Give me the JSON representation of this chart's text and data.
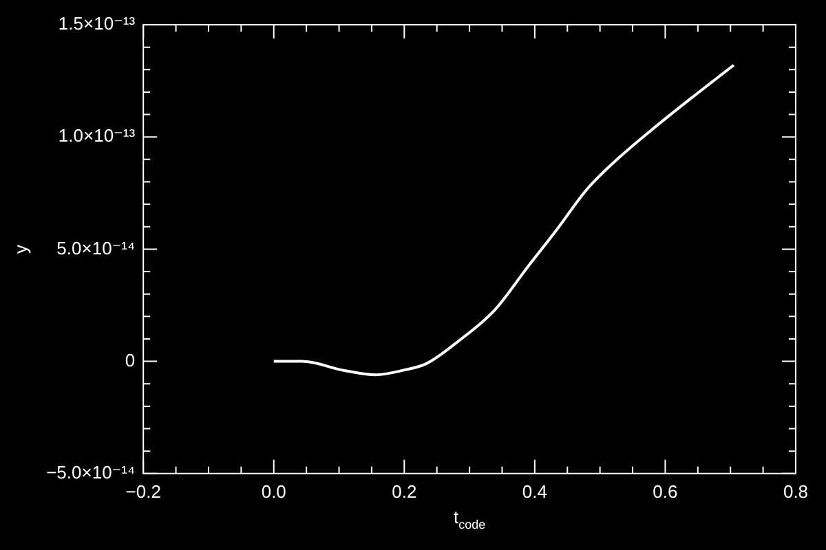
{
  "chart_data": {
    "type": "line",
    "xlabel": "t$_{code}$",
    "ylabel": "y",
    "xlim": [
      -0.2,
      0.8
    ],
    "xticks": [
      {
        "value": -0.2,
        "label": "−0.2"
      },
      {
        "value": -0.15,
        "label": null
      },
      {
        "value": -0.1,
        "label": null
      },
      {
        "value": -0.05,
        "label": null
      },
      {
        "value": 0,
        "label": "0.0"
      },
      {
        "value": 0.05,
        "label": null
      },
      {
        "value": 0.1,
        "label": null
      },
      {
        "value": 0.15,
        "label": null
      },
      {
        "value": 0.2,
        "label": "0.2"
      },
      {
        "value": 0.25,
        "label": null
      },
      {
        "value": 0.3,
        "label": null
      },
      {
        "value": 0.35,
        "label": null
      },
      {
        "value": 0.4,
        "label": "0.4"
      },
      {
        "value": 0.45,
        "label": null
      },
      {
        "value": 0.5,
        "label": null
      },
      {
        "value": 0.55,
        "label": null
      },
      {
        "value": 0.6,
        "label": "0.6"
      },
      {
        "value": 0.65,
        "label": null
      },
      {
        "value": 0.7,
        "label": null
      },
      {
        "value": 0.75,
        "label": null
      },
      {
        "value": 0.8,
        "label": "0.8"
      }
    ],
    "ylim": [
      -5e-14,
      1.5e-13
    ],
    "yticks": [
      {
        "value": -5e-14,
        "label": "−5.0×10⁻¹⁴"
      },
      {
        "value": -4e-14,
        "label": null
      },
      {
        "value": -3e-14,
        "label": null
      },
      {
        "value": -2e-14,
        "label": null
      },
      {
        "value": -1e-14,
        "label": null
      },
      {
        "value": 0,
        "label": "0"
      },
      {
        "value": 1e-14,
        "label": null
      },
      {
        "value": 2e-14,
        "label": null
      },
      {
        "value": 3e-14,
        "label": null
      },
      {
        "value": 4e-14,
        "label": null
      },
      {
        "value": 5e-14,
        "label": "5.0×10⁻¹⁴"
      },
      {
        "value": 6e-14,
        "label": null
      },
      {
        "value": 7e-14,
        "label": null
      },
      {
        "value": 8e-14,
        "label": null
      },
      {
        "value": 9e-14,
        "label": null
      },
      {
        "value": 1e-13,
        "label": "1.0×10⁻¹³"
      },
      {
        "value": 1.1e-13,
        "label": null
      },
      {
        "value": 1.2e-13,
        "label": null
      },
      {
        "value": 1.3e-13,
        "label": null
      },
      {
        "value": 1.4e-13,
        "label": null
      },
      {
        "value": 1.5e-13,
        "label": "1.5×10⁻¹³"
      }
    ],
    "grid": false,
    "legend": false,
    "marker": "none",
    "line_style": "solid",
    "series": [
      {
        "color": "#ffffff",
        "x": [
          0,
          0.043,
          0.107,
          0.156,
          0.198,
          0.234,
          0.283,
          0.339,
          0.389,
          0.432,
          0.481,
          0.53,
          0.587,
          0.643,
          0.705
        ],
        "values": [
          0,
          0,
          -4e-15,
          -6e-15,
          -4e-15,
          -1e-15,
          9e-15,
          2.3e-14,
          4.2e-14,
          5.8e-14,
          7.7e-14,
          9.1e-14,
          1.05e-13,
          1.18e-13,
          1.32e-13
        ]
      }
    ]
  }
}
